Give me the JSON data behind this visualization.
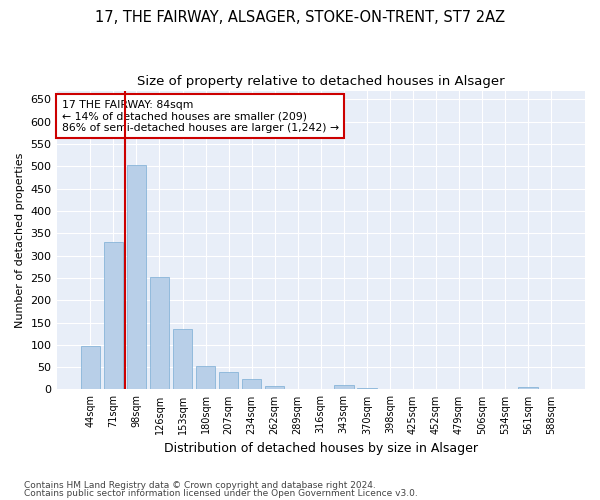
{
  "title": "17, THE FAIRWAY, ALSAGER, STOKE-ON-TRENT, ST7 2AZ",
  "subtitle": "Size of property relative to detached houses in Alsager",
  "xlabel": "Distribution of detached houses by size in Alsager",
  "ylabel": "Number of detached properties",
  "categories": [
    "44sqm",
    "71sqm",
    "98sqm",
    "126sqm",
    "153sqm",
    "180sqm",
    "207sqm",
    "234sqm",
    "262sqm",
    "289sqm",
    "316sqm",
    "343sqm",
    "370sqm",
    "398sqm",
    "425sqm",
    "452sqm",
    "479sqm",
    "506sqm",
    "534sqm",
    "561sqm",
    "588sqm"
  ],
  "values": [
    97,
    330,
    503,
    253,
    135,
    52,
    38,
    23,
    8,
    2,
    2,
    10,
    4,
    1,
    0,
    0,
    0,
    0,
    0,
    5,
    0
  ],
  "bar_color": "#b8cfe8",
  "bar_edgecolor": "#7aadd4",
  "ylim": [
    0,
    670
  ],
  "yticks": [
    0,
    50,
    100,
    150,
    200,
    250,
    300,
    350,
    400,
    450,
    500,
    550,
    600,
    650
  ],
  "red_line_x": 1.5,
  "annotation_text": "17 THE FAIRWAY: 84sqm\n← 14% of detached houses are smaller (209)\n86% of semi-detached houses are larger (1,242) →",
  "annotation_box_facecolor": "#ffffff",
  "annotation_box_edgecolor": "#cc0000",
  "footer_line1": "Contains HM Land Registry data © Crown copyright and database right 2024.",
  "footer_line2": "Contains public sector information licensed under the Open Government Licence v3.0.",
  "plot_bgcolor": "#e8eef8",
  "fig_bgcolor": "#ffffff",
  "grid_color": "#ffffff",
  "title_fontsize": 10.5,
  "subtitle_fontsize": 9.5,
  "ylabel_fontsize": 8,
  "xlabel_fontsize": 9
}
